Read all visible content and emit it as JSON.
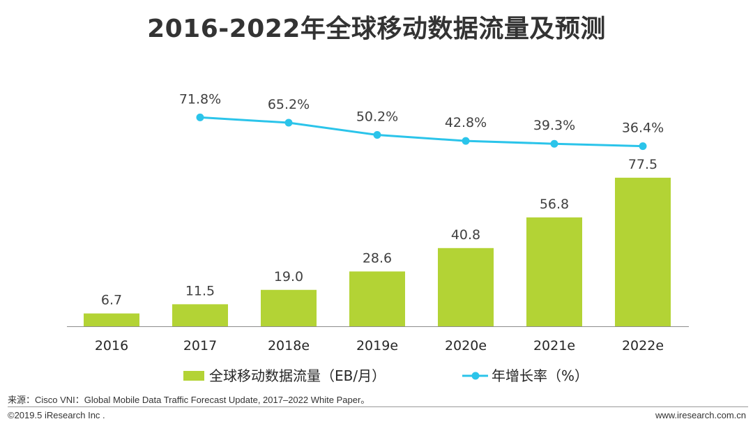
{
  "page": {
    "title": "2016-2022年全球移动数据流量及预测",
    "source": "来源：Cisco VNI：Global Mobile Data Traffic Forecast Update, 2017–2022 White Paper。",
    "copyright": "©2019.5 iResearch Inc .",
    "website": "www.iresearch.com.cn"
  },
  "colors": {
    "bar": "#B3D335",
    "line": "#2BC4EA",
    "axis": "#8c8c8c"
  },
  "chart_data": {
    "type": "bar",
    "title": "2016-2022年全球移动数据流量及预测",
    "categories": [
      "2016",
      "2017",
      "2018e",
      "2019e",
      "2020e",
      "2021e",
      "2022e"
    ],
    "series": [
      {
        "name": "全球移动数据流量（EB/月）",
        "type": "bar",
        "values": [
          6.7,
          11.5,
          19.0,
          28.6,
          40.8,
          56.8,
          77.5
        ],
        "labels": [
          "6.7",
          "11.5",
          "19.0",
          "28.6",
          "40.8",
          "56.8",
          "77.5"
        ]
      },
      {
        "name": "年增长率（%）",
        "type": "line",
        "values": [
          null,
          71.8,
          65.2,
          50.2,
          42.8,
          39.3,
          36.4
        ],
        "labels": [
          "",
          "71.8%",
          "65.2%",
          "50.2%",
          "42.8%",
          "39.3%",
          "36.4%"
        ]
      }
    ],
    "bar_axis_range": [
      0,
      80
    ],
    "line_axis_range": [
      0,
      80
    ],
    "grid": false,
    "legend_position": "bottom"
  }
}
